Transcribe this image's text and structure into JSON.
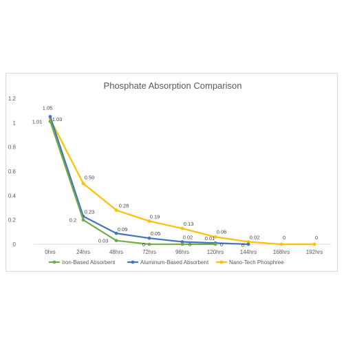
{
  "chart_data": {
    "type": "line",
    "title": "Phosphate Absorption Comparison",
    "xlabel": "",
    "ylabel": "",
    "categories": [
      "0hrs",
      "24hrs",
      "48hrs",
      "72hrs",
      "96hrs",
      "120hrs",
      "144hrs",
      "168hrs",
      "192hrs"
    ],
    "ylim": [
      0,
      1.2
    ],
    "yticks": [
      "0",
      "0.2",
      "0.4",
      "0.6",
      "0.8",
      "1",
      "1.2"
    ],
    "grid": false,
    "legend_position": "bottom",
    "series": [
      {
        "name": "Iron-Based Absorbent",
        "color": "#70ad47",
        "values": [
          1.01,
          0.2,
          0.03,
          0,
          0,
          0,
          null,
          null,
          null
        ],
        "labels": [
          "1.01",
          "0.2",
          "0.03",
          "0",
          "0",
          "0",
          "",
          "",
          ""
        ]
      },
      {
        "name": "Aluminum-Based Absorbent",
        "color": "#4472c4",
        "values": [
          1.05,
          0.23,
          0.09,
          0.05,
          0.02,
          0.01,
          0,
          null,
          null
        ],
        "labels": [
          "1.05",
          "0.23",
          "0.09",
          "0.05",
          "0.02",
          "0.01",
          "0",
          "",
          ""
        ]
      },
      {
        "name": "Nano-Tech Phosphree",
        "color": "#ffc000",
        "values": [
          1.03,
          0.5,
          0.28,
          0.19,
          0.13,
          0.06,
          0.02,
          0,
          0
        ],
        "labels": [
          "1.03",
          "0.50",
          "0.28",
          "0.19",
          "0.13",
          "0.06",
          "0.02",
          "0",
          "0"
        ]
      }
    ]
  }
}
